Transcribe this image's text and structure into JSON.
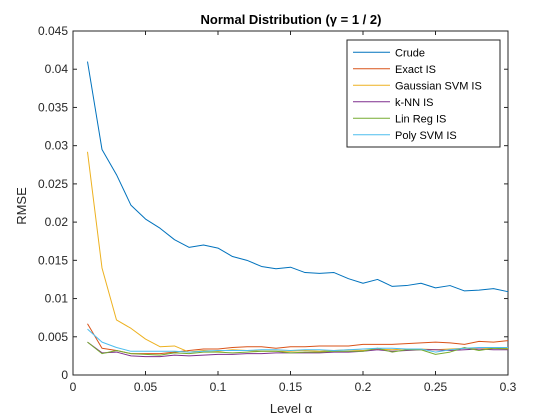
{
  "chart_data": {
    "type": "line",
    "title": "Normal Distribution (γ = 1 / 2)",
    "xlabel": "Level α",
    "ylabel": "RMSE",
    "xlim": [
      0,
      0.3
    ],
    "ylim": [
      0,
      0.045
    ],
    "xticks": [
      0,
      0.05,
      0.1,
      0.15,
      0.2,
      0.25,
      0.3
    ],
    "xtick_labels": [
      "0",
      "0.05",
      "0.1",
      "0.15",
      "0.2",
      "0.25",
      "0.3"
    ],
    "yticks": [
      0,
      0.005,
      0.01,
      0.015,
      0.02,
      0.025,
      0.03,
      0.035,
      0.04,
      0.045
    ],
    "ytick_labels": [
      "0",
      "0.005",
      "0.01",
      "0.015",
      "0.02",
      "0.025",
      "0.03",
      "0.035",
      "0.04",
      "0.045"
    ],
    "grid": false,
    "legend_position": "top-right",
    "x": [
      0.01,
      0.02,
      0.03,
      0.04,
      0.05,
      0.06,
      0.07,
      0.08,
      0.09,
      0.1,
      0.11,
      0.12,
      0.13,
      0.14,
      0.15,
      0.16,
      0.17,
      0.18,
      0.19,
      0.2,
      0.21,
      0.22,
      0.23,
      0.24,
      0.25,
      0.26,
      0.27,
      0.28,
      0.29,
      0.3
    ],
    "series": [
      {
        "name": "Crude",
        "color": "#0072BD",
        "values": [
          0.041,
          0.0295,
          0.0262,
          0.0222,
          0.0204,
          0.0192,
          0.0177,
          0.0167,
          0.017,
          0.0166,
          0.0155,
          0.015,
          0.0142,
          0.0139,
          0.0141,
          0.0134,
          0.0133,
          0.0134,
          0.0126,
          0.012,
          0.0125,
          0.0116,
          0.0117,
          0.012,
          0.0114,
          0.0117,
          0.011,
          0.0111,
          0.0113,
          0.0109
        ]
      },
      {
        "name": "Exact IS",
        "color": "#D95319",
        "values": [
          0.0067,
          0.0035,
          0.0032,
          0.0028,
          0.0028,
          0.0028,
          0.003,
          0.0032,
          0.0034,
          0.0034,
          0.0036,
          0.0037,
          0.0037,
          0.0035,
          0.0037,
          0.0037,
          0.0038,
          0.0038,
          0.0038,
          0.004,
          0.004,
          0.004,
          0.0041,
          0.0042,
          0.0043,
          0.0042,
          0.004,
          0.0044,
          0.0043,
          0.0045
        ]
      },
      {
        "name": "Gaussian SVM IS",
        "color": "#EDB120",
        "values": [
          0.0292,
          0.014,
          0.0072,
          0.0061,
          0.0047,
          0.0037,
          0.0038,
          0.003,
          0.0032,
          0.0031,
          0.0033,
          0.0032,
          0.0031,
          0.0031,
          0.0031,
          0.0032,
          0.0031,
          0.0032,
          0.0033,
          0.0032,
          0.0034,
          0.0033,
          0.0034,
          0.0034,
          0.0033,
          0.0034,
          0.0035,
          0.0034,
          0.0035,
          0.0035
        ]
      },
      {
        "name": "k-NN IS",
        "color": "#7E2F8E",
        "values": [
          0.0043,
          0.0029,
          0.003,
          0.0025,
          0.0024,
          0.0024,
          0.0026,
          0.0025,
          0.0026,
          0.0027,
          0.0027,
          0.0028,
          0.0028,
          0.0029,
          0.0029,
          0.0029,
          0.0029,
          0.003,
          0.003,
          0.0031,
          0.0033,
          0.0031,
          0.0032,
          0.0033,
          0.0033,
          0.0032,
          0.0033,
          0.0034,
          0.0033,
          0.0033
        ]
      },
      {
        "name": "Lin Reg IS",
        "color": "#77AC30",
        "values": [
          0.0043,
          0.0028,
          0.0032,
          0.0028,
          0.0027,
          0.0026,
          0.0029,
          0.0028,
          0.003,
          0.003,
          0.0029,
          0.003,
          0.0031,
          0.0031,
          0.0029,
          0.003,
          0.003,
          0.0031,
          0.0031,
          0.0031,
          0.0035,
          0.003,
          0.0033,
          0.0033,
          0.0027,
          0.003,
          0.0036,
          0.0032,
          0.0035,
          0.0034
        ]
      },
      {
        "name": "Poly SVM IS",
        "color": "#4DBEEE",
        "values": [
          0.006,
          0.0043,
          0.0036,
          0.0031,
          0.0031,
          0.0031,
          0.0031,
          0.003,
          0.0031,
          0.0032,
          0.0032,
          0.0032,
          0.0033,
          0.0033,
          0.0032,
          0.0033,
          0.0033,
          0.0032,
          0.0033,
          0.0034,
          0.0035,
          0.0035,
          0.0034,
          0.0034,
          0.003,
          0.0033,
          0.0035,
          0.0036,
          0.0036,
          0.0036
        ]
      }
    ]
  }
}
